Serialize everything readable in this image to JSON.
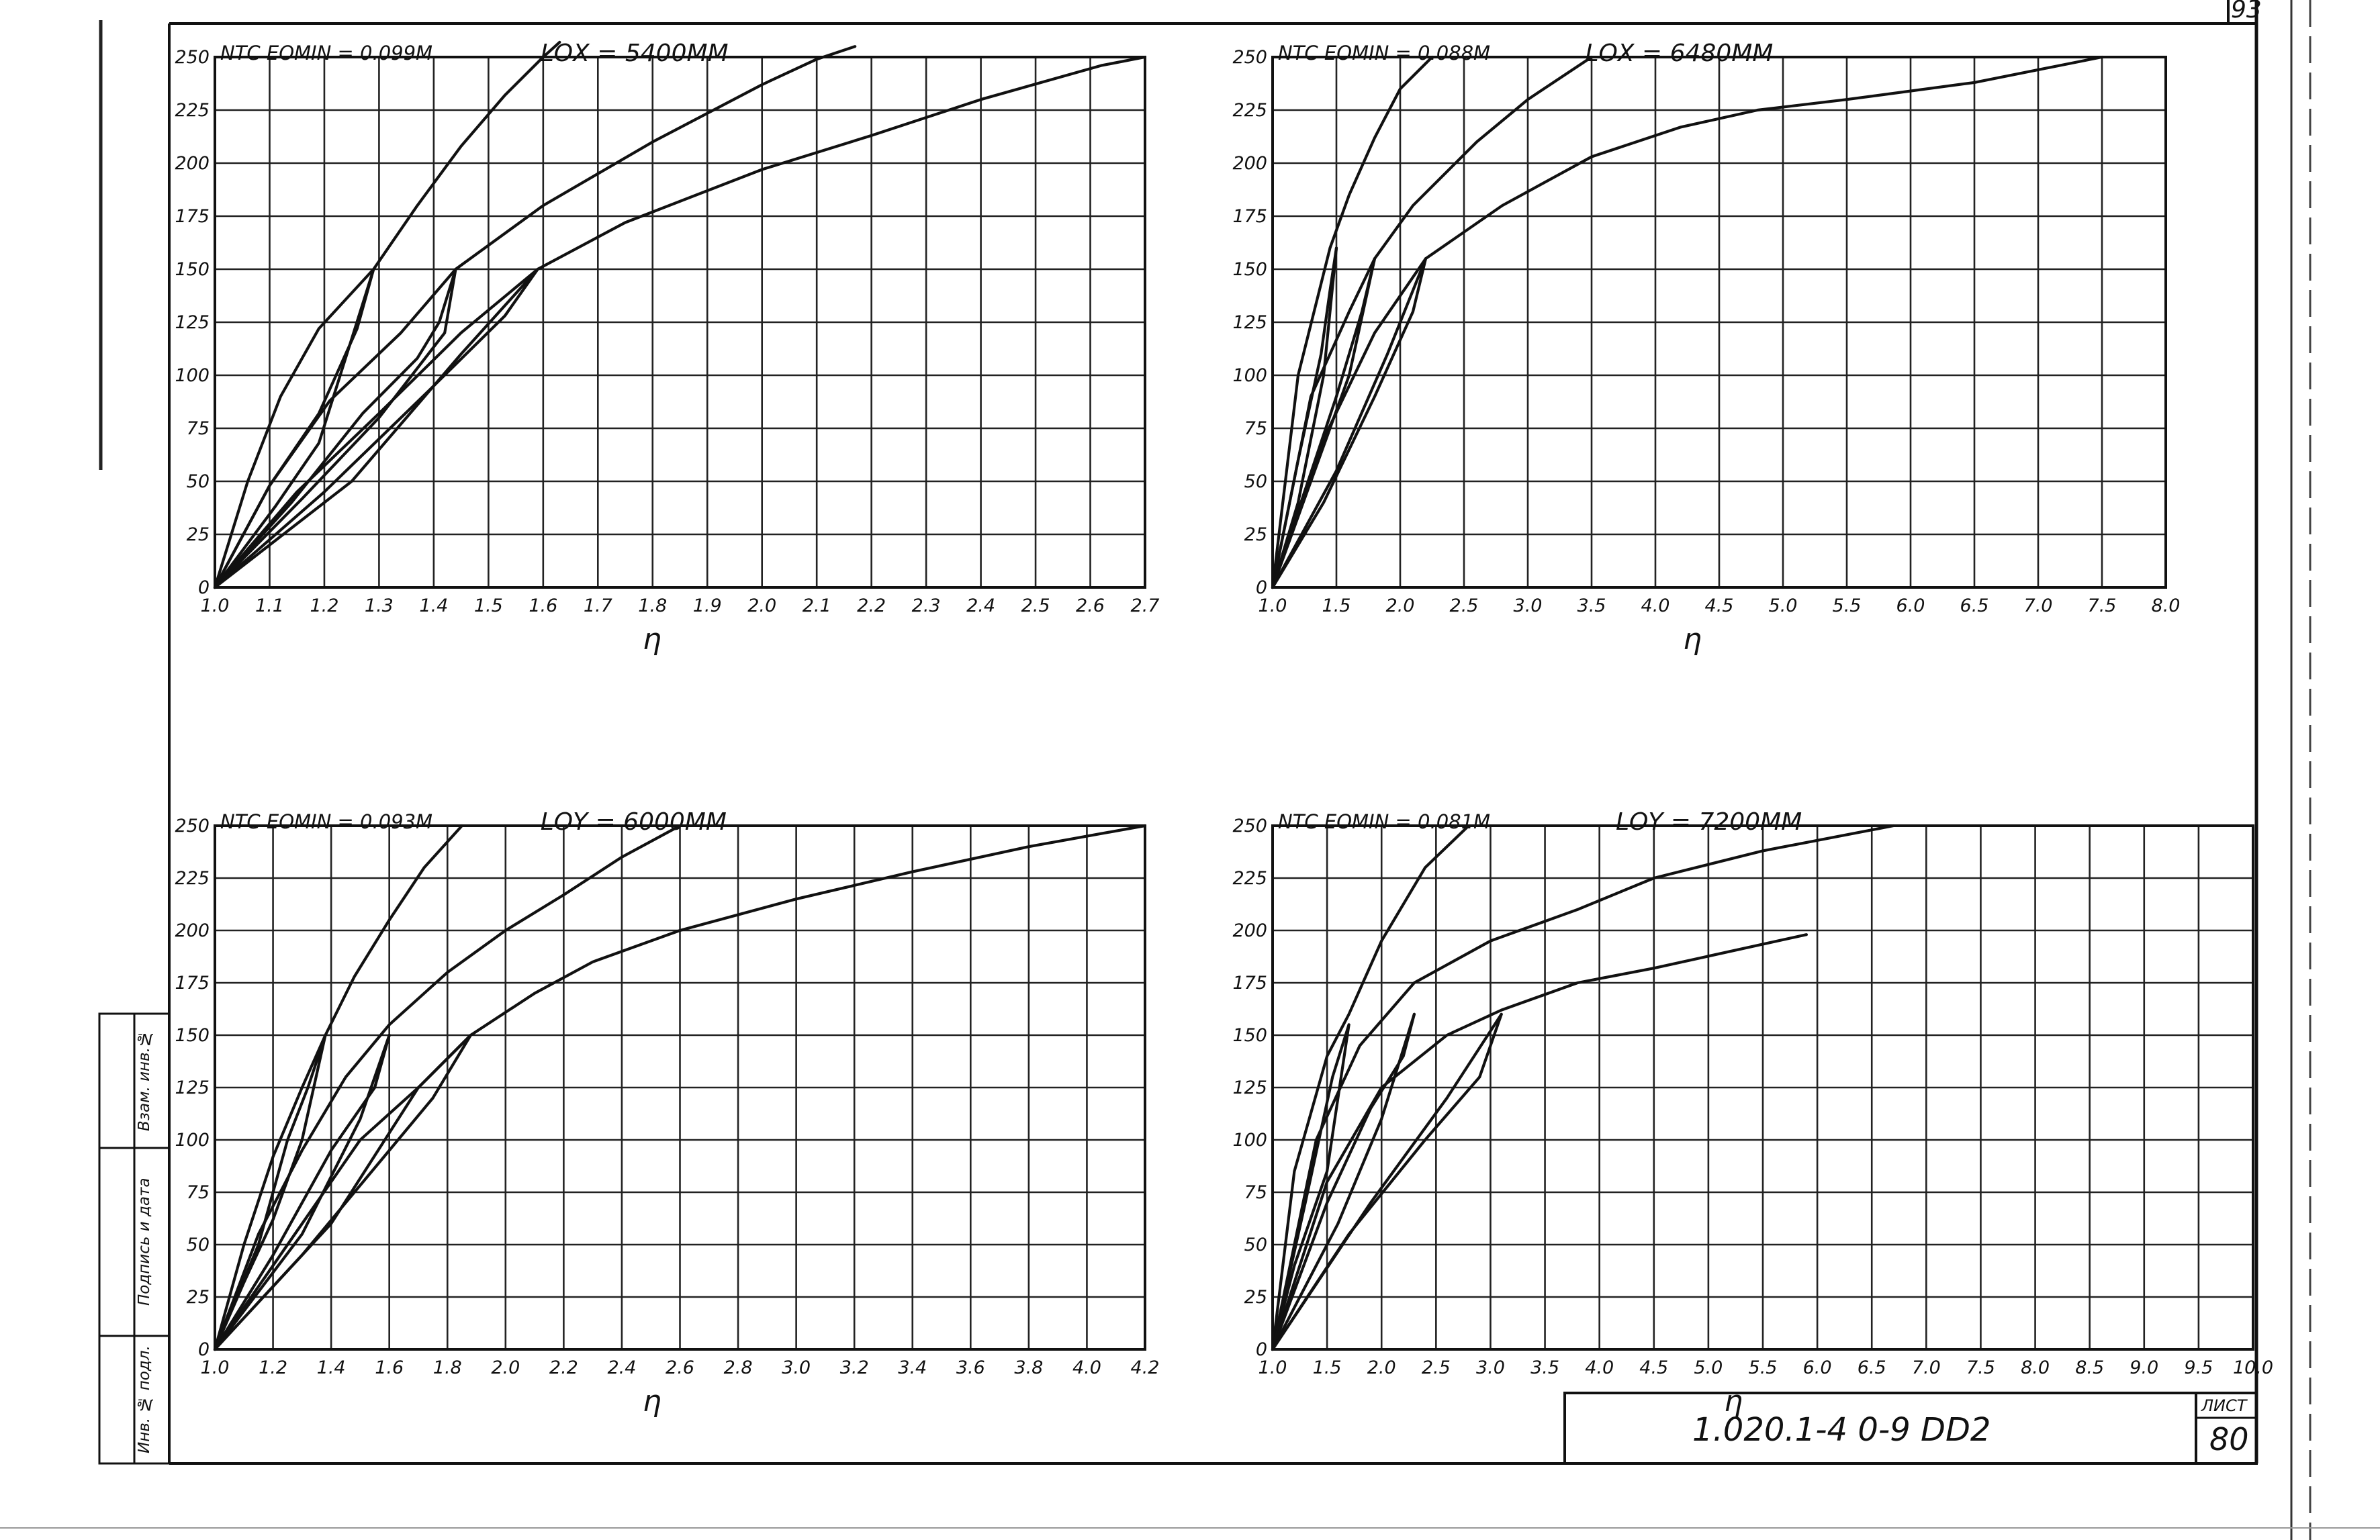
{
  "sheet": {
    "corner_number": "93",
    "doc_code": "1.020.1-4   0-9  DD2",
    "list_label": "ЛИСТ",
    "list_number": "80",
    "side_labels": [
      "Инв. № подл.",
      "Подпись и дата",
      "Взам. инв.№"
    ]
  },
  "chart_data": [
    {
      "type": "line",
      "title": "NТС  EОMIN = 0.099М",
      "length_label": "LОX = 5400ММ",
      "xlabel": "η",
      "ylabel": "",
      "xlim": [
        1.0,
        2.7
      ],
      "ylim": [
        0,
        250
      ],
      "xticks": [
        1.0,
        1.1,
        1.2,
        1.3,
        1.4,
        1.5,
        1.6,
        1.7,
        1.8,
        1.9,
        2.0,
        2.1,
        2.2,
        2.3,
        2.4,
        2.5,
        2.6,
        2.7
      ],
      "xtick_labels": [
        "1.0",
        "1.1",
        "1.2",
        "1.3",
        "1.4",
        "1.5",
        "1.6",
        "1.7",
        "1.8",
        "1.9",
        "2.0",
        "2.1",
        "2.2",
        "2.3",
        "2.4",
        "2.5",
        "2.6",
        "2.7"
      ],
      "yticks": [
        0,
        25,
        50,
        75,
        100,
        125,
        150,
        175,
        200,
        225,
        250
      ],
      "ytick_labels": [
        "0",
        "25",
        "50",
        "75",
        "100",
        "125",
        "150",
        "175",
        "200",
        "225",
        "250"
      ],
      "grid": true,
      "series": [
        {
          "x": [
            1.0,
            1.06,
            1.12,
            1.19,
            1.29,
            1.37,
            1.45,
            1.53,
            1.6,
            1.63
          ],
          "y": [
            0,
            50,
            90,
            122,
            150,
            180,
            208,
            232,
            250,
            257
          ]
        },
        {
          "x": [
            1.0,
            1.1,
            1.21,
            1.34,
            1.44,
            1.6,
            1.8,
            2.0,
            2.1,
            2.17
          ],
          "y": [
            0,
            48,
            88,
            120,
            150,
            180,
            210,
            237,
            249,
            255
          ]
        },
        {
          "x": [
            1.0,
            1.15,
            1.3,
            1.45,
            1.59,
            1.75,
            2.0,
            2.2,
            2.4,
            2.62,
            2.7
          ],
          "y": [
            0,
            45,
            82,
            120,
            150,
            172,
            197,
            213,
            230,
            246,
            250
          ]
        },
        {
          "x": [
            1.0,
            1.1,
            1.19,
            1.26,
            1.29
          ],
          "y": [
            0,
            48,
            82,
            122,
            150
          ]
        },
        {
          "x": [
            1.0,
            1.11,
            1.19,
            1.29
          ],
          "y": [
            0,
            38,
            68,
            150
          ]
        },
        {
          "x": [
            1.0,
            1.14,
            1.27,
            1.37,
            1.41,
            1.44
          ],
          "y": [
            0,
            40,
            82,
            108,
            125,
            150
          ]
        },
        {
          "x": [
            1.0,
            1.16,
            1.3,
            1.42,
            1.44
          ],
          "y": [
            0,
            42,
            80,
            120,
            150
          ]
        },
        {
          "x": [
            1.0,
            1.2,
            1.4,
            1.53,
            1.59
          ],
          "y": [
            0,
            45,
            95,
            128,
            150
          ]
        },
        {
          "x": [
            1.0,
            1.25,
            1.45,
            1.59
          ],
          "y": [
            0,
            50,
            110,
            150
          ]
        }
      ]
    },
    {
      "type": "line",
      "title": "NТС  EОMIN = 0.088М",
      "length_label": "LОX = 6480ММ",
      "xlabel": "η",
      "ylabel": "",
      "xlim": [
        1.0,
        8.0
      ],
      "ylim": [
        0,
        250
      ],
      "xticks": [
        1.0,
        1.5,
        2.0,
        2.5,
        3.0,
        3.5,
        4.0,
        4.5,
        5.0,
        5.5,
        6.0,
        6.5,
        7.0,
        7.5,
        8.0
      ],
      "xtick_labels": [
        "1.0",
        "1.5",
        "2.0",
        "2.5",
        "3.0",
        "3.5",
        "4.0",
        "4.5",
        "5.0",
        "5.5",
        "6.0",
        "6.5",
        "7.0",
        "7.5",
        "8.0"
      ],
      "yticks": [
        0,
        25,
        50,
        75,
        100,
        125,
        150,
        175,
        200,
        225,
        250
      ],
      "ytick_labels": [
        "0",
        "25",
        "50",
        "75",
        "100",
        "125",
        "150",
        "175",
        "200",
        "225",
        "250"
      ],
      "grid": true,
      "series": [
        {
          "x": [
            1.0,
            1.2,
            1.45,
            1.6,
            1.8,
            2.0,
            2.25
          ],
          "y": [
            0,
            100,
            160,
            185,
            212,
            235,
            250
          ]
        },
        {
          "x": [
            1.0,
            1.3,
            1.6,
            1.8,
            2.1,
            2.6,
            3.0,
            3.5
          ],
          "y": [
            0,
            90,
            130,
            155,
            180,
            210,
            230,
            250
          ]
        },
        {
          "x": [
            1.0,
            1.4,
            1.8,
            2.2,
            2.8,
            3.5,
            4.2,
            4.8,
            5.5,
            6.5,
            7.5
          ],
          "y": [
            0,
            70,
            120,
            155,
            180,
            203,
            217,
            225,
            230,
            238,
            250
          ]
        },
        {
          "x": [
            1.0,
            1.2,
            1.38,
            1.45,
            1.5
          ],
          "y": [
            0,
            60,
            110,
            140,
            160
          ]
        },
        {
          "x": [
            1.0,
            1.2,
            1.4,
            1.5
          ],
          "y": [
            0,
            40,
            100,
            160
          ]
        },
        {
          "x": [
            1.0,
            1.25,
            1.5,
            1.7,
            1.8
          ],
          "y": [
            0,
            45,
            90,
            130,
            155
          ]
        },
        {
          "x": [
            1.0,
            1.3,
            1.6,
            1.8
          ],
          "y": [
            0,
            50,
            100,
            155
          ]
        },
        {
          "x": [
            1.0,
            1.4,
            1.8,
            2.1,
            2.2
          ],
          "y": [
            0,
            40,
            90,
            130,
            155
          ]
        },
        {
          "x": [
            1.0,
            1.5,
            1.9,
            2.2
          ],
          "y": [
            0,
            55,
            110,
            155
          ]
        }
      ]
    },
    {
      "type": "line",
      "title": "NТС  EОMIN = 0.093М",
      "length_label": "LОY = 6000ММ",
      "xlabel": "η",
      "ylabel": "",
      "xlim": [
        1.0,
        4.2
      ],
      "ylim": [
        0,
        250
      ],
      "xticks": [
        1.0,
        1.2,
        1.4,
        1.6,
        1.8,
        2.0,
        2.2,
        2.4,
        2.6,
        2.8,
        3.0,
        3.2,
        3.4,
        3.6,
        3.8,
        4.0,
        4.2
      ],
      "xtick_labels": [
        "1.0",
        "1.2",
        "1.4",
        "1.6",
        "1.8",
        "2.0",
        "2.2",
        "2.4",
        "2.6",
        "2.8",
        "3.0",
        "3.2",
        "3.4",
        "3.6",
        "3.8",
        "4.0",
        "4.2"
      ],
      "yticks": [
        0,
        25,
        50,
        75,
        100,
        125,
        150,
        175,
        200,
        225,
        250
      ],
      "ytick_labels": [
        "0",
        "25",
        "50",
        "75",
        "100",
        "125",
        "150",
        "175",
        "200",
        "225",
        "250"
      ],
      "grid": true,
      "series": [
        {
          "x": [
            1.0,
            1.1,
            1.2,
            1.3,
            1.38,
            1.48,
            1.6,
            1.72,
            1.85
          ],
          "y": [
            0,
            50,
            92,
            125,
            150,
            178,
            205,
            230,
            250
          ]
        },
        {
          "x": [
            1.0,
            1.15,
            1.3,
            1.45,
            1.6,
            1.8,
            2.0,
            2.2,
            2.4,
            2.6
          ],
          "y": [
            0,
            55,
            95,
            130,
            155,
            180,
            200,
            217,
            235,
            250
          ]
        },
        {
          "x": [
            1.0,
            1.25,
            1.5,
            1.7,
            1.88,
            2.1,
            2.3,
            2.6,
            3.0,
            3.4,
            3.8,
            4.2
          ],
          "y": [
            0,
            50,
            100,
            125,
            150,
            170,
            185,
            200,
            215,
            228,
            240,
            250
          ]
        },
        {
          "x": [
            1.0,
            1.15,
            1.25,
            1.32,
            1.38
          ],
          "y": [
            0,
            50,
            100,
            125,
            150
          ]
        },
        {
          "x": [
            1.0,
            1.1,
            1.2,
            1.3,
            1.38
          ],
          "y": [
            0,
            32,
            62,
            100,
            150
          ]
        },
        {
          "x": [
            1.0,
            1.2,
            1.4,
            1.55,
            1.6
          ],
          "y": [
            0,
            45,
            95,
            125,
            150
          ]
        },
        {
          "x": [
            1.0,
            1.3,
            1.5,
            1.6
          ],
          "y": [
            0,
            55,
            110,
            150
          ]
        },
        {
          "x": [
            1.0,
            1.3,
            1.6,
            1.75,
            1.88
          ],
          "y": [
            0,
            45,
            95,
            120,
            150
          ]
        },
        {
          "x": [
            1.0,
            1.4,
            1.7,
            1.88
          ],
          "y": [
            0,
            60,
            125,
            150
          ]
        }
      ]
    },
    {
      "type": "line",
      "title": "NТС  EОMIN = 0.081М",
      "length_label": "LОY = 7200ММ",
      "xlabel": "η",
      "ylabel": "",
      "xlim": [
        1.0,
        10.0
      ],
      "ylim": [
        0,
        250
      ],
      "xticks": [
        1.0,
        1.5,
        2.0,
        2.5,
        3.0,
        3.5,
        4.0,
        4.5,
        5.0,
        5.5,
        6.0,
        6.5,
        7.0,
        7.5,
        8.0,
        8.5,
        9.0,
        9.5,
        10.0
      ],
      "xtick_labels": [
        "1.0",
        "1.5",
        "2.0",
        "2.5",
        "3.0",
        "3.5",
        "4.0",
        "4.5",
        "5.0",
        "5.5",
        "6.0",
        "6.5",
        "7.0",
        "7.5",
        "8.0",
        "8.5",
        "9.0",
        "9.5",
        "10.0"
      ],
      "yticks": [
        0,
        25,
        50,
        75,
        100,
        125,
        150,
        175,
        200,
        225,
        250
      ],
      "ytick_labels": [
        "0",
        "25",
        "50",
        "75",
        "100",
        "125",
        "150",
        "175",
        "200",
        "225",
        "250"
      ],
      "grid": true,
      "series": [
        {
          "x": [
            1.0,
            1.2,
            1.5,
            1.7,
            2.0,
            2.4,
            2.8
          ],
          "y": [
            0,
            85,
            140,
            160,
            195,
            230,
            250
          ]
        },
        {
          "x": [
            1.0,
            1.4,
            1.8,
            2.3,
            3.0,
            3.8,
            4.5,
            5.5,
            6.7
          ],
          "y": [
            0,
            100,
            145,
            175,
            195,
            210,
            225,
            238,
            250
          ]
        },
        {
          "x": [
            1.0,
            1.5,
            2.0,
            2.6,
            3.1,
            3.8,
            4.5,
            5.2,
            5.9
          ],
          "y": [
            0,
            80,
            125,
            150,
            162,
            175,
            182,
            190,
            198
          ]
        },
        {
          "x": [
            1.0,
            1.3,
            1.55,
            1.7
          ],
          "y": [
            0,
            70,
            130,
            155
          ]
        },
        {
          "x": [
            1.0,
            1.2,
            1.5,
            1.7
          ],
          "y": [
            0,
            40,
            85,
            155
          ]
        },
        {
          "x": [
            1.0,
            1.5,
            1.9,
            2.2,
            2.3
          ],
          "y": [
            0,
            70,
            115,
            140,
            160
          ]
        },
        {
          "x": [
            1.0,
            1.6,
            2.0,
            2.3
          ],
          "y": [
            0,
            60,
            110,
            160
          ]
        },
        {
          "x": [
            1.0,
            1.7,
            2.4,
            2.9,
            3.1
          ],
          "y": [
            0,
            55,
            100,
            130,
            160
          ]
        },
        {
          "x": [
            1.0,
            1.9,
            2.6,
            3.1
          ],
          "y": [
            0,
            70,
            120,
            160
          ]
        }
      ]
    }
  ]
}
